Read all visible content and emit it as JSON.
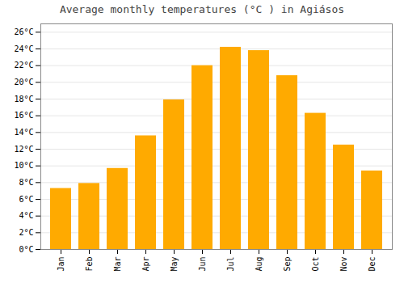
{
  "chart_data": {
    "type": "bar",
    "title": "Average monthly temperatures (°C ) in Agiásos",
    "categories": [
      "Jan",
      "Feb",
      "Mar",
      "Apr",
      "May",
      "Jun",
      "Jul",
      "Aug",
      "Sep",
      "Oct",
      "Nov",
      "Dec"
    ],
    "values": [
      7.3,
      7.9,
      9.7,
      13.6,
      17.9,
      22.0,
      24.2,
      23.8,
      20.8,
      16.3,
      12.5,
      9.4
    ],
    "color": "#FFAA00",
    "ylim": [
      0,
      27
    ],
    "yticks": [
      {
        "value": 0,
        "label": "0°C"
      },
      {
        "value": 2,
        "label": "2°C"
      },
      {
        "value": 4,
        "label": "4°C"
      },
      {
        "value": 6,
        "label": "6°C"
      },
      {
        "value": 8,
        "label": "8°C"
      },
      {
        "value": 10,
        "label": "10°C"
      },
      {
        "value": 12,
        "label": "12°C"
      },
      {
        "value": 14,
        "label": "14°C"
      },
      {
        "value": 16,
        "label": "16°C"
      },
      {
        "value": 18,
        "label": "18°C"
      },
      {
        "value": 20,
        "label": "20°C"
      },
      {
        "value": 22,
        "label": "22°C"
      },
      {
        "value": 24,
        "label": "24°C"
      },
      {
        "value": 26,
        "label": "26°C"
      }
    ],
    "grid": true
  }
}
